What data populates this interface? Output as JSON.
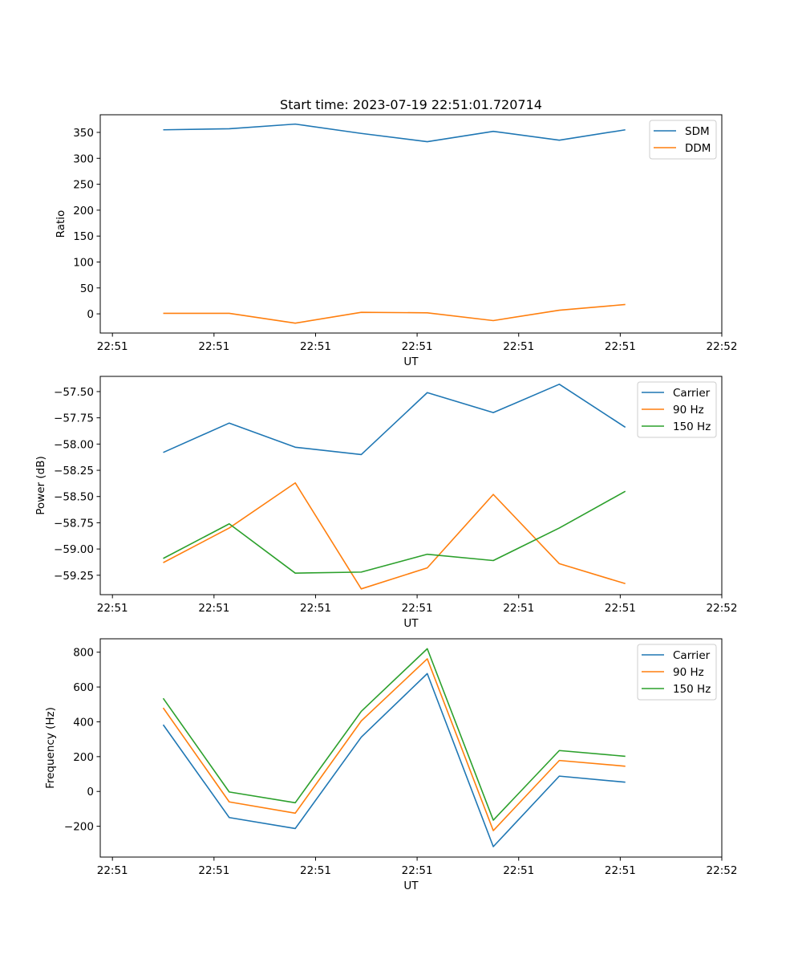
{
  "chart_data": [
    {
      "type": "line",
      "title": "Start time: 2023-07-19 22:51:01.720714",
      "xlabel": "UT",
      "ylabel": "Ratio",
      "x_tick_labels": [
        "22:51",
        "22:51",
        "22:51",
        "22:51",
        "22:51",
        "22:51",
        "22:51"
      ],
      "x_tick_labels_last": "22:52",
      "x": [
        0.5,
        1.15,
        1.8,
        2.45,
        3.1,
        3.75,
        4.4,
        5.05
      ],
      "xlim": [
        -0.12,
        6.0
      ],
      "ylim": [
        -37,
        384
      ],
      "yticks": [
        0,
        50,
        100,
        150,
        200,
        250,
        300,
        350
      ],
      "legend": "top-right",
      "series": [
        {
          "name": "SDM",
          "color": "#1f77b4",
          "values": [
            355,
            357,
            366,
            348,
            332,
            352,
            335,
            355
          ]
        },
        {
          "name": "DDM",
          "color": "#ff7f0e",
          "values": [
            1,
            1,
            -18,
            3,
            2,
            -13,
            7,
            18
          ]
        }
      ]
    },
    {
      "type": "line",
      "title": "",
      "xlabel": "UT",
      "ylabel": "Power (dB)",
      "x_tick_labels": [
        "22:51",
        "22:51",
        "22:51",
        "22:51",
        "22:51",
        "22:51",
        "22:51"
      ],
      "x_tick_labels_last": "22:52",
      "x": [
        0.5,
        1.15,
        1.8,
        2.45,
        3.1,
        3.75,
        4.4,
        5.05
      ],
      "xlim": [
        -0.12,
        6.0
      ],
      "ylim": [
        -59.435,
        -57.355
      ],
      "yticks": [
        -59.25,
        -59.0,
        -58.75,
        -58.5,
        -58.25,
        -58.0,
        -57.75,
        -57.5
      ],
      "ytick_labels": [
        "−59.25",
        "−59.00",
        "−58.75",
        "−58.50",
        "−58.25",
        "−58.00",
        "−57.75",
        "−57.50"
      ],
      "legend": "top-right",
      "series": [
        {
          "name": "Carrier",
          "color": "#1f77b4",
          "values": [
            -58.08,
            -57.8,
            -58.03,
            -58.1,
            -57.51,
            -57.7,
            -57.43,
            -57.84
          ]
        },
        {
          "name": "90 Hz",
          "color": "#ff7f0e",
          "values": [
            -59.13,
            -58.8,
            -58.37,
            -59.38,
            -59.18,
            -58.48,
            -59.14,
            -59.33
          ]
        },
        {
          "name": "150 Hz",
          "color": "#2ca02c",
          "values": [
            -59.09,
            -58.76,
            -59.23,
            -59.22,
            -59.05,
            -59.11,
            -58.8,
            -58.45
          ]
        }
      ]
    },
    {
      "type": "line",
      "title": "",
      "xlabel": "UT",
      "ylabel": "Frequency (Hz)",
      "x_tick_labels": [
        "22:51",
        "22:51",
        "22:51",
        "22:51",
        "22:51",
        "22:51",
        "22:51"
      ],
      "x_tick_labels_last": "22:52",
      "x": [
        0.5,
        1.15,
        1.8,
        2.45,
        3.1,
        3.75,
        4.4,
        5.05
      ],
      "xlim": [
        -0.12,
        6.0
      ],
      "ylim": [
        -377,
        877
      ],
      "yticks": [
        -200,
        0,
        200,
        400,
        600,
        800
      ],
      "ytick_labels": [
        "−200",
        "0",
        "200",
        "400",
        "600",
        "800"
      ],
      "legend": "top-right",
      "series": [
        {
          "name": "Carrier",
          "color": "#1f77b4",
          "values": [
            383,
            -150,
            -213,
            312,
            677,
            -317,
            88,
            53
          ]
        },
        {
          "name": "90 Hz",
          "color": "#ff7f0e",
          "values": [
            480,
            -60,
            -125,
            405,
            762,
            -225,
            178,
            145
          ]
        },
        {
          "name": "150 Hz",
          "color": "#2ca02c",
          "values": [
            535,
            -3,
            -65,
            460,
            820,
            -165,
            235,
            202
          ]
        }
      ]
    }
  ]
}
